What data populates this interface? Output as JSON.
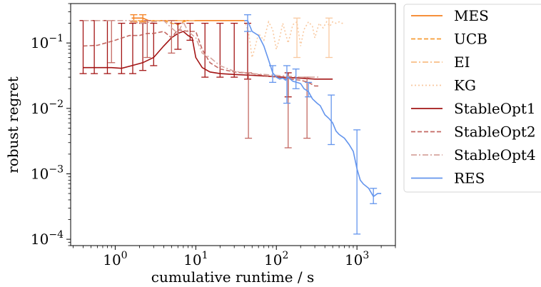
{
  "chart_data": {
    "type": "line",
    "xlabel": "cumulative runtime / s",
    "ylabel": "robust regret",
    "xscale": "log",
    "yscale": "log",
    "xlim": [
      0.28,
      3000
    ],
    "ylim": [
      8e-05,
      0.4
    ],
    "grid": false,
    "legend_position": "outside-right",
    "x_ticks": [
      {
        "value": 1,
        "base": "10",
        "exp": "0"
      },
      {
        "value": 10,
        "base": "10",
        "exp": "1"
      },
      {
        "value": 100,
        "base": "10",
        "exp": "2"
      },
      {
        "value": 1000,
        "base": "10",
        "exp": "3"
      }
    ],
    "y_ticks": [
      {
        "value": 0.0001,
        "base": "10",
        "exp": "−4"
      },
      {
        "value": 0.001,
        "base": "10",
        "exp": "−3"
      },
      {
        "value": 0.01,
        "base": "10",
        "exp": "−2"
      },
      {
        "value": 0.1,
        "base": "10",
        "exp": "−1"
      }
    ],
    "series": [
      {
        "name": "MES",
        "color": "#f5801f",
        "dash": "solid",
        "opacity": 1.0,
        "x": [
          1.6,
          2.2,
          2.6,
          3.2,
          5,
          10,
          20,
          40
        ],
        "y": [
          0.24,
          0.24,
          0.22,
          0.22,
          0.22,
          0.22,
          0.22,
          0.22
        ],
        "errors": [
          {
            "x": 1.7,
            "lo": 0.21,
            "hi": 0.27
          },
          {
            "x": 2.2,
            "lo": 0.21,
            "hi": 0.27
          }
        ]
      },
      {
        "name": "UCB",
        "color": "#f5911f",
        "dash": "dashed",
        "opacity": 0.9,
        "x": [
          1.6,
          2.5,
          4,
          5,
          6,
          7,
          8,
          10
        ],
        "y": [
          0.22,
          0.22,
          0.22,
          0.2,
          0.19,
          0.21,
          0.22,
          0.22
        ],
        "errors": []
      },
      {
        "name": "EI",
        "color": "#f7b779",
        "dash": "dashdot",
        "opacity": 0.9,
        "x": [
          1.6,
          3,
          5,
          8,
          10
        ],
        "y": [
          0.22,
          0.22,
          0.22,
          0.22,
          0.22
        ],
        "errors": []
      },
      {
        "name": "KG",
        "color": "#f9c9a0",
        "dash": "dotted",
        "opacity": 1.0,
        "x": [
          40,
          45,
          50,
          55,
          60,
          70,
          80,
          90,
          100,
          110,
          120,
          140,
          160,
          180,
          200,
          220,
          250,
          280,
          300,
          340,
          380,
          420,
          460,
          500,
          550,
          600,
          650,
          700
        ],
        "y": [
          0.22,
          0.15,
          0.06,
          0.09,
          0.14,
          0.11,
          0.21,
          0.16,
          0.08,
          0.12,
          0.2,
          0.1,
          0.19,
          0.21,
          0.09,
          0.16,
          0.21,
          0.18,
          0.12,
          0.2,
          0.17,
          0.21,
          0.18,
          0.21,
          0.2,
          0.21,
          0.2,
          0.2
        ],
        "errors": [
          {
            "x": 180,
            "lo": 0.06,
            "hi": 0.24
          },
          {
            "x": 450,
            "lo": 0.06,
            "hi": 0.24
          }
        ]
      },
      {
        "name": "StableOpt1",
        "color": "#a31515",
        "dash": "solid",
        "opacity": 1.0,
        "x": [
          0.4,
          0.6,
          0.9,
          1.2,
          1.6,
          2.2,
          3,
          4,
          5,
          6,
          7,
          8,
          9,
          10,
          12,
          15,
          20,
          30,
          50,
          80,
          120,
          200,
          300,
          500
        ],
        "y": [
          0.042,
          0.042,
          0.042,
          0.041,
          0.045,
          0.05,
          0.06,
          0.09,
          0.12,
          0.14,
          0.15,
          0.13,
          0.12,
          0.06,
          0.042,
          0.036,
          0.034,
          0.033,
          0.032,
          0.031,
          0.03,
          0.029,
          0.028,
          0.028
        ],
        "errors": [
          {
            "x": 0.4,
            "lo": 0.034,
            "hi": 0.22
          },
          {
            "x": 0.55,
            "lo": 0.034,
            "hi": 0.22
          },
          {
            "x": 0.8,
            "lo": 0.034,
            "hi": 0.22
          },
          {
            "x": 1.2,
            "lo": 0.034,
            "hi": 0.2
          },
          {
            "x": 1.65,
            "lo": 0.034,
            "hi": 0.2
          },
          {
            "x": 2.2,
            "lo": 0.038,
            "hi": 0.2
          },
          {
            "x": 3.0,
            "lo": 0.045,
            "hi": 0.2
          },
          {
            "x": 6.0,
            "lo": 0.08,
            "hi": 0.2
          },
          {
            "x": 8.5,
            "lo": 0.11,
            "hi": 0.2
          },
          {
            "x": 13,
            "lo": 0.03,
            "hi": 0.2
          },
          {
            "x": 20,
            "lo": 0.03,
            "hi": 0.2
          },
          {
            "x": 30,
            "lo": 0.03,
            "hi": 0.2
          },
          {
            "x": 44,
            "lo": 0.028,
            "hi": 0.2
          },
          {
            "x": 140,
            "lo": 0.015,
            "hi": 0.035
          }
        ]
      },
      {
        "name": "StableOpt2",
        "color": "#c0605a",
        "dash": "dashed",
        "opacity": 0.95,
        "x": [
          0.4,
          0.6,
          1,
          1.5,
          2,
          2.5,
          3,
          4,
          5,
          6,
          8,
          10,
          12,
          15,
          20,
          30,
          50,
          80,
          100,
          150,
          200,
          250,
          300,
          350
        ],
        "y": [
          0.09,
          0.092,
          0.11,
          0.13,
          0.13,
          0.14,
          0.14,
          0.15,
          0.12,
          0.16,
          0.15,
          0.15,
          0.08,
          0.05,
          0.04,
          0.036,
          0.034,
          0.031,
          0.03,
          0.028,
          0.027,
          0.025,
          0.022,
          0.022
        ],
        "errors": [
          {
            "x": 0.9,
            "lo": 0.05,
            "hi": 0.22
          },
          {
            "x": 2.5,
            "lo": 0.06,
            "hi": 0.22
          },
          {
            "x": 5,
            "lo": 0.07,
            "hi": 0.22
          },
          {
            "x": 45,
            "lo": 0.0035,
            "hi": 0.035
          },
          {
            "x": 140,
            "lo": 0.0025,
            "hi": 0.03
          },
          {
            "x": 240,
            "lo": 0.0035,
            "hi": 0.03
          }
        ]
      },
      {
        "name": "StableOpt4",
        "color": "#d4a099",
        "dash": "dashdot",
        "opacity": 0.95,
        "x": [
          0.4,
          0.8,
          1.5,
          2,
          3,
          4,
          5,
          6,
          7,
          8,
          10,
          12,
          15,
          20,
          30,
          50,
          100,
          200,
          350
        ],
        "y": [
          0.22,
          0.22,
          0.22,
          0.2,
          0.21,
          0.22,
          0.17,
          0.14,
          0.21,
          0.15,
          0.12,
          0.07,
          0.06,
          0.045,
          0.037,
          0.034,
          0.032,
          0.03,
          0.03
        ],
        "errors": []
      },
      {
        "name": "RES",
        "color": "#6495ed",
        "dash": "solid",
        "opacity": 1.0,
        "x": [
          40,
          44,
          50,
          60,
          70,
          80,
          90,
          100,
          110,
          120,
          130,
          140,
          160,
          180,
          200,
          220,
          250,
          280,
          320,
          350,
          400,
          450,
          500,
          550,
          600,
          700,
          800,
          900,
          1000,
          1100,
          1200,
          1400,
          1600,
          1800,
          2000
        ],
        "y": [
          0.22,
          0.22,
          0.15,
          0.13,
          0.09,
          0.055,
          0.035,
          0.03,
          0.028,
          0.029,
          0.027,
          0.03,
          0.026,
          0.025,
          0.024,
          0.02,
          0.018,
          0.014,
          0.012,
          0.011,
          0.008,
          0.007,
          0.006,
          0.0045,
          0.004,
          0.0035,
          0.0028,
          0.0022,
          0.0012,
          0.0008,
          0.0007,
          0.0006,
          0.00045,
          0.0005,
          0.0005
        ],
        "errors": [
          {
            "x": 44,
            "lo": 0.15,
            "hi": 0.27
          },
          {
            "x": 90,
            "lo": 0.025,
            "hi": 0.045
          },
          {
            "x": 135,
            "lo": 0.012,
            "hi": 0.045
          },
          {
            "x": 175,
            "lo": 0.02,
            "hi": 0.04
          },
          {
            "x": 250,
            "lo": 0.015,
            "hi": 0.025
          },
          {
            "x": 480,
            "lo": 0.0028,
            "hi": 0.016
          },
          {
            "x": 1000,
            "lo": 0.00012,
            "hi": 0.0047
          },
          {
            "x": 1600,
            "lo": 0.00035,
            "hi": 0.0006
          }
        ]
      }
    ]
  }
}
